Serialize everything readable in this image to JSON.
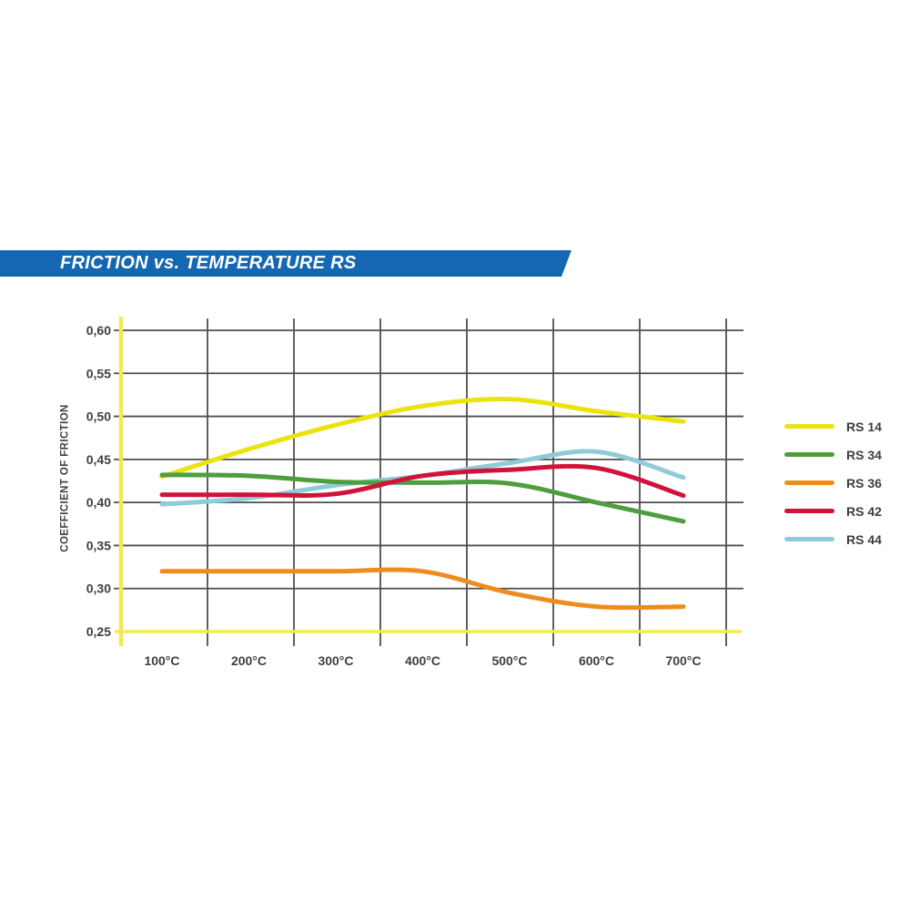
{
  "header": {
    "title": "FRICTION vs. TEMPERATURE RS"
  },
  "colors": {
    "banner_bg": "#1467b0",
    "banner_text": "#ffffff",
    "grid": "#4f4f4f",
    "axis_yellow": "#f2ea55",
    "baseline_yellow": "#f6ec49",
    "tick_text": "#3f3f3f"
  },
  "chart_data": {
    "type": "line",
    "title": "FRICTION vs. TEMPERATURE RS",
    "xlabel": "",
    "ylabel": "COEFFICIENT OF FRICTION",
    "x_unit": "°C",
    "x": [
      100,
      200,
      300,
      400,
      500,
      600,
      700
    ],
    "x_tick_labels": [
      "100°C",
      "200°C",
      "300°C",
      "400°C",
      "500°C",
      "600°C",
      "700°C"
    ],
    "y_ticks": [
      0.6,
      0.55,
      0.5,
      0.45,
      0.4,
      0.35,
      0.3,
      0.25
    ],
    "y_tick_labels": [
      "0,60",
      "0,55",
      "0,50",
      "0,45",
      "0,40",
      "0,35",
      "0,30",
      "0,25"
    ],
    "ylim": [
      0.25,
      0.6
    ],
    "grid": true,
    "legend_position": "right",
    "series": [
      {
        "name": "RS 14",
        "color": "#ebe30e",
        "values": [
          0.43,
          0.462,
          0.49,
          0.512,
          0.52,
          0.506,
          0.494
        ]
      },
      {
        "name": "RS 34",
        "color": "#4e9d3e",
        "values": [
          0.432,
          0.431,
          0.424,
          0.423,
          0.422,
          0.4,
          0.378
        ]
      },
      {
        "name": "RS 36",
        "color": "#ee8d1e",
        "values": [
          0.32,
          0.32,
          0.32,
          0.32,
          0.295,
          0.279,
          0.279
        ]
      },
      {
        "name": "RS 42",
        "color": "#d2123a",
        "values": [
          0.409,
          0.409,
          0.41,
          0.431,
          0.438,
          0.44,
          0.408
        ]
      },
      {
        "name": "RS 44",
        "color": "#8fccd8",
        "values": [
          0.398,
          0.405,
          0.42,
          0.431,
          0.446,
          0.459,
          0.429
        ]
      }
    ]
  }
}
